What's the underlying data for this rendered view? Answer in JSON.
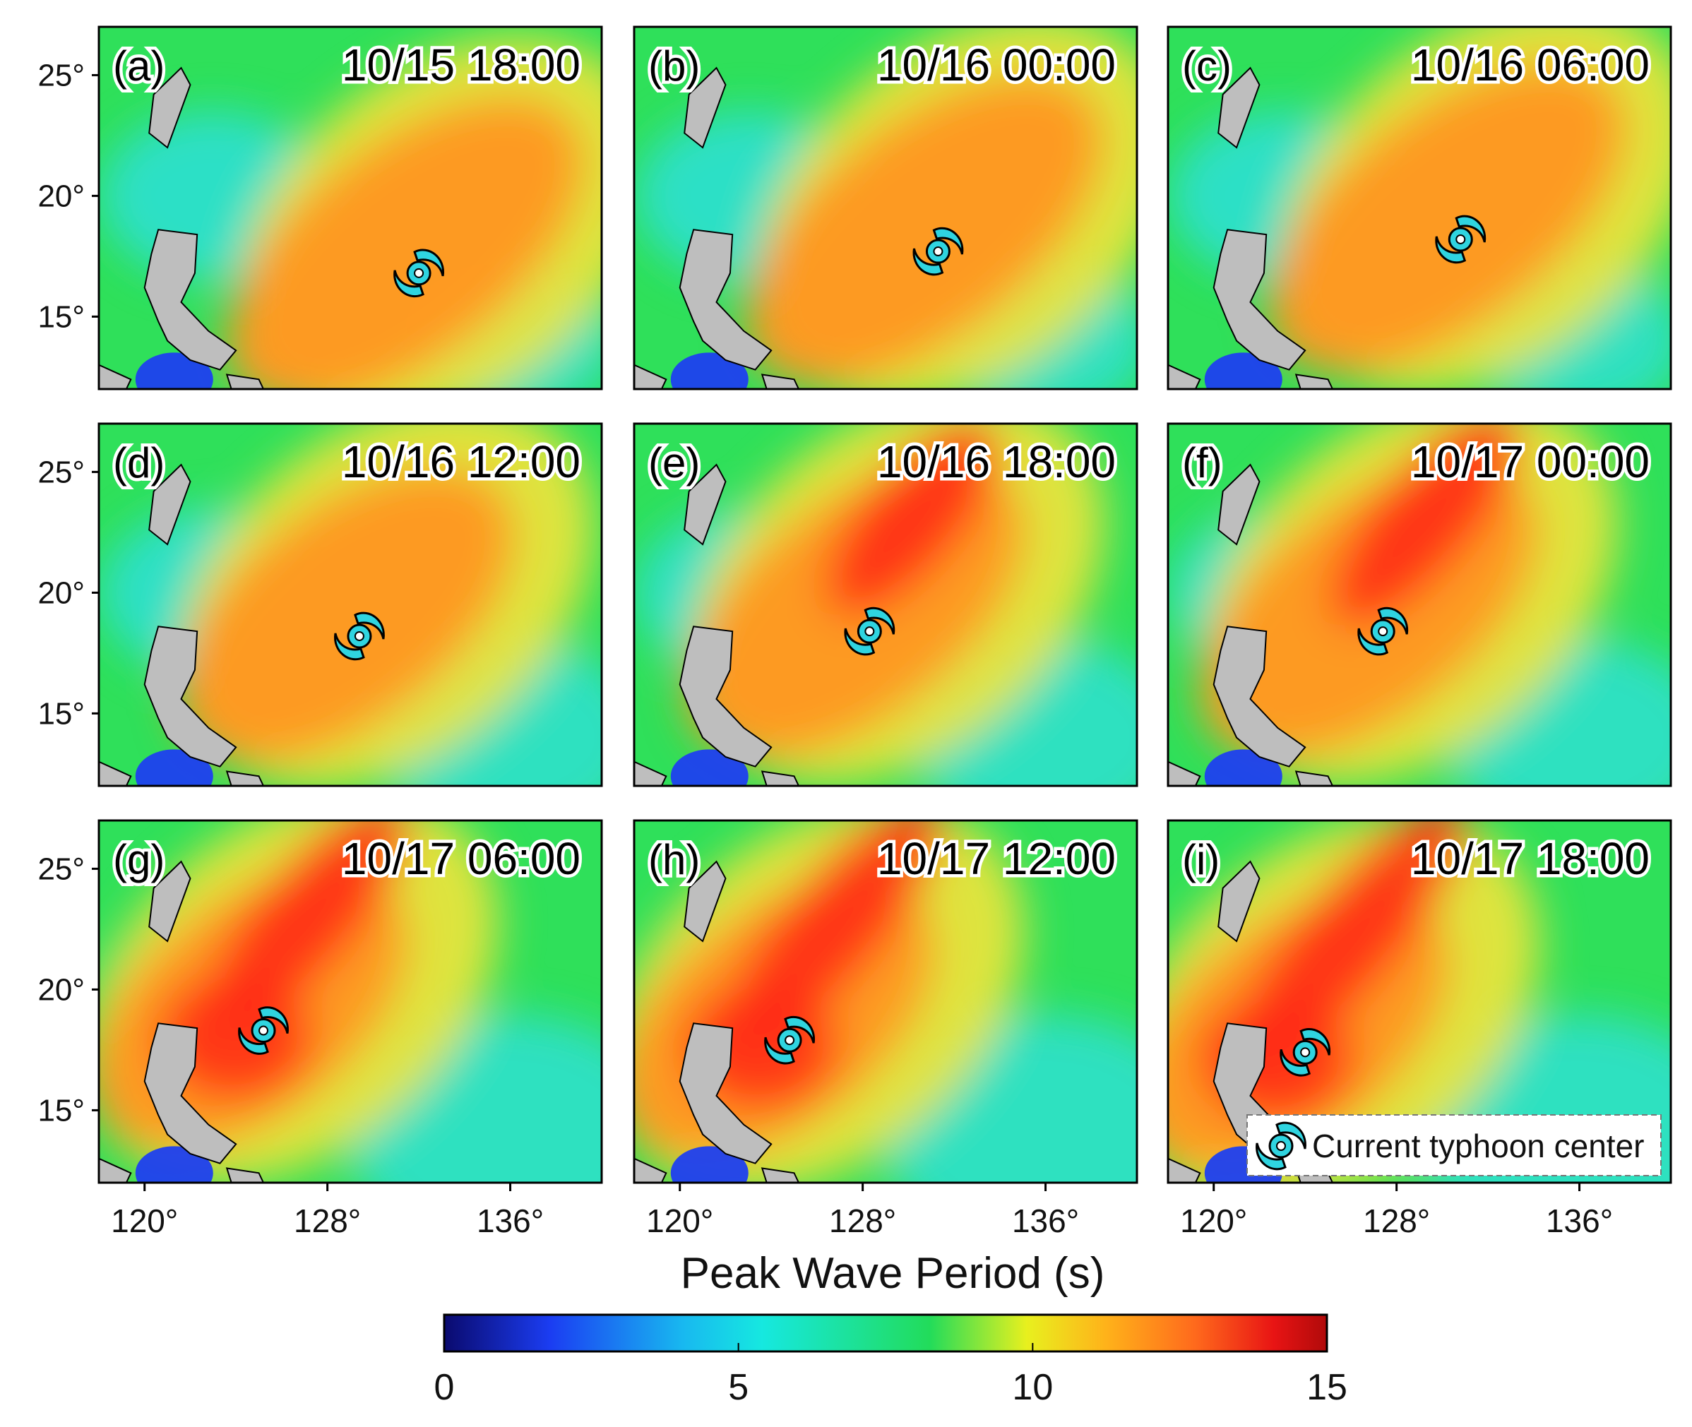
{
  "figure": {
    "panels": [
      {
        "label": "(a)",
        "time": "10/15 18:00",
        "center": {
          "lon": 132.0,
          "lat": 16.8
        }
      },
      {
        "label": "(b)",
        "time": "10/16 00:00",
        "center": {
          "lon": 131.3,
          "lat": 17.7
        }
      },
      {
        "label": "(c)",
        "time": "10/16 06:00",
        "center": {
          "lon": 130.8,
          "lat": 18.2
        }
      },
      {
        "label": "(d)",
        "time": "10/16 12:00",
        "center": {
          "lon": 129.4,
          "lat": 18.2
        }
      },
      {
        "label": "(e)",
        "time": "10/16 18:00",
        "center": {
          "lon": 128.3,
          "lat": 18.4
        }
      },
      {
        "label": "(f)",
        "time": "10/17 00:00",
        "center": {
          "lon": 127.4,
          "lat": 18.4
        }
      },
      {
        "label": "(g)",
        "time": "10/17 06:00",
        "center": {
          "lon": 125.2,
          "lat": 18.3
        }
      },
      {
        "label": "(h)",
        "time": "10/17 12:00",
        "center": {
          "lon": 124.8,
          "lat": 17.9
        }
      },
      {
        "label": "(i)",
        "time": "10/17 18:00",
        "center": {
          "lon": 124.0,
          "lat": 17.4
        }
      }
    ],
    "y_ticks": [
      "25°",
      "20°",
      "15°"
    ],
    "x_ticks": [
      "120°",
      "128°",
      "136°"
    ],
    "colorbar": {
      "title": "Peak Wave Period (s)",
      "ticks": [
        "0",
        "5",
        "10",
        "15"
      ],
      "range": [
        0,
        15
      ],
      "colors": [
        "#0a0a6e",
        "#1b3df2",
        "#18b8f0",
        "#16e8e0",
        "#22dc5a",
        "#e8f01e",
        "#ffb21a",
        "#ff6a1c",
        "#e81414",
        "#b00a0a"
      ]
    },
    "legend": {
      "label": "Current typhoon center",
      "icon": "typhoon-icon"
    },
    "colors": {
      "land": "#bebebe",
      "cyan": "#2de0d2",
      "green": "#2fe05a",
      "yellow": "#f2e43a",
      "orange": "#ff9622",
      "red": "#ff2a14",
      "blue": "#1e3ff0"
    }
  }
}
